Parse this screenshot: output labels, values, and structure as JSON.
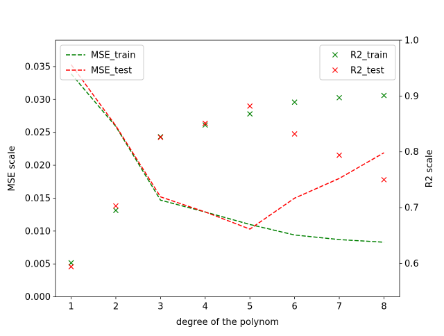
{
  "chart_data": {
    "type": "line",
    "xlabel": "degree of the polynom",
    "ylabel_left": "MSE scale",
    "ylabel_right": "R2 scale",
    "x": [
      1,
      2,
      3,
      4,
      5,
      6,
      7,
      8
    ],
    "x_ticks": [
      "1",
      "2",
      "3",
      "4",
      "5",
      "6",
      "7",
      "8"
    ],
    "xlim": [
      0.65,
      8.35
    ],
    "ylim_left": [
      0.0,
      0.039
    ],
    "y_ticks_left": [
      "0.000",
      "0.005",
      "0.010",
      "0.015",
      "0.020",
      "0.025",
      "0.030",
      "0.035"
    ],
    "ylim_right": [
      0.54,
      1.0
    ],
    "y_ticks_right": [
      "0.6",
      "0.7",
      "0.8",
      "0.9",
      "1.0"
    ],
    "series": [
      {
        "name": "MSE_train",
        "axis": "left",
        "style": "dashed",
        "color": "#008000",
        "values": [
          0.0339,
          0.0259,
          0.0147,
          0.0129,
          0.011,
          0.0094,
          0.0087,
          0.0083
        ]
      },
      {
        "name": "MSE_test",
        "axis": "left",
        "style": "dashed",
        "color": "#ff0000",
        "values": [
          0.0353,
          0.026,
          0.0152,
          0.0129,
          0.0103,
          0.015,
          0.018,
          0.0219
        ]
      },
      {
        "name": "R2_train",
        "axis": "right",
        "style": "marker-x",
        "color": "#008000",
        "values": [
          0.601,
          0.695,
          0.827,
          0.848,
          0.868,
          0.889,
          0.897,
          0.901
        ]
      },
      {
        "name": "R2_test",
        "axis": "right",
        "style": "marker-x",
        "color": "#ff0000",
        "values": [
          0.594,
          0.703,
          0.826,
          0.851,
          0.882,
          0.832,
          0.794,
          0.75
        ]
      }
    ],
    "legend_left": {
      "position": "top-left",
      "entries": [
        "MSE_train",
        "MSE_test"
      ]
    },
    "legend_right": {
      "position": "top-right",
      "entries": [
        "R2_train",
        "R2_test"
      ]
    },
    "grid": false
  }
}
